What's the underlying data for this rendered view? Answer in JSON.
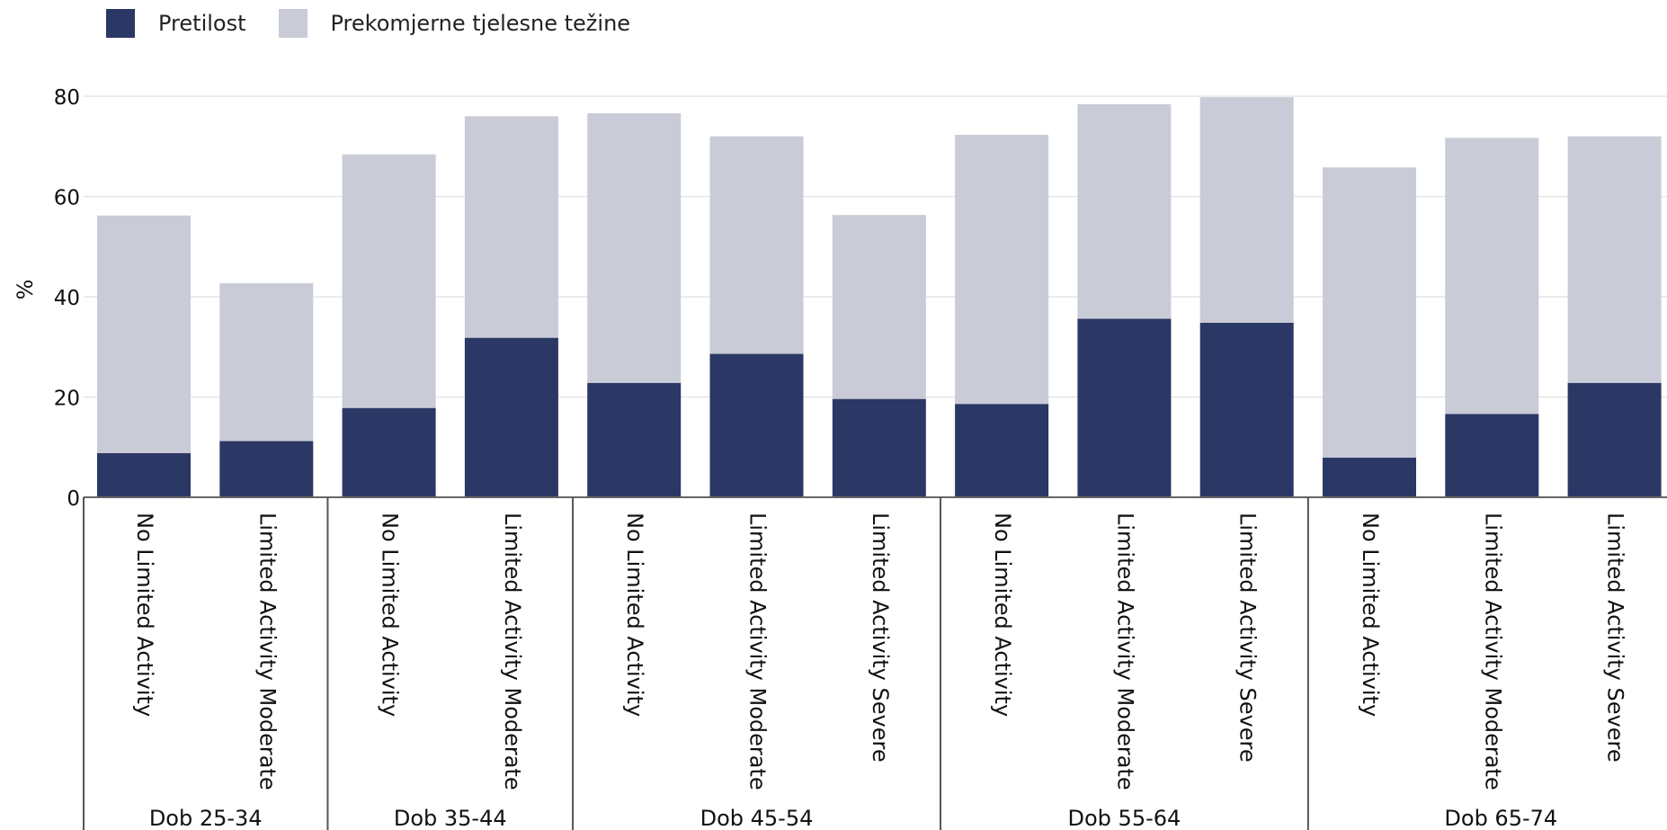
{
  "legend": [
    {
      "label": "Pretilost",
      "color": "#2b3764"
    },
    {
      "label": "Prekomjerne tjelesne težine",
      "color": "#c9cbd7"
    }
  ],
  "chart_data": {
    "type": "bar",
    "stacked": true,
    "ylabel": "%",
    "xlabel": "",
    "ylim": [
      0,
      80
    ],
    "yticks": [
      0,
      20,
      40,
      60,
      80
    ],
    "grid": true,
    "legend_position": "top-left",
    "groups": [
      {
        "label": "Dob 25-34",
        "categories": [
          "No Limited Activity",
          "Limited Activity Moderate"
        ]
      },
      {
        "label": "Dob 35-44",
        "categories": [
          "No Limited Activity",
          "Limited Activity Moderate"
        ]
      },
      {
        "label": "Dob 45-54",
        "categories": [
          "No Limited Activity",
          "Limited Activity Moderate",
          "Limited Activity Severe"
        ]
      },
      {
        "label": "Dob 55-64",
        "categories": [
          "No Limited Activity",
          "Limited Activity Moderate",
          "Limited Activity Severe"
        ]
      },
      {
        "label": "Dob 65-74",
        "categories": [
          "No Limited Activity",
          "Limited Activity Moderate",
          "Limited Activity Severe"
        ]
      }
    ],
    "series": [
      {
        "name": "Pretilost",
        "color": "#2b3764",
        "values": [
          8.8,
          11.2,
          17.8,
          31.8,
          22.8,
          28.6,
          19.6,
          18.6,
          35.6,
          34.8,
          7.9,
          16.6,
          22.8
        ]
      },
      {
        "name": "Prekomjerne tjelesne težine",
        "color": "#c9cbd7",
        "values": [
          47.4,
          31.5,
          50.6,
          44.2,
          53.8,
          43.4,
          36.7,
          53.7,
          42.8,
          45.0,
          57.9,
          55.1,
          49.2
        ]
      }
    ]
  }
}
